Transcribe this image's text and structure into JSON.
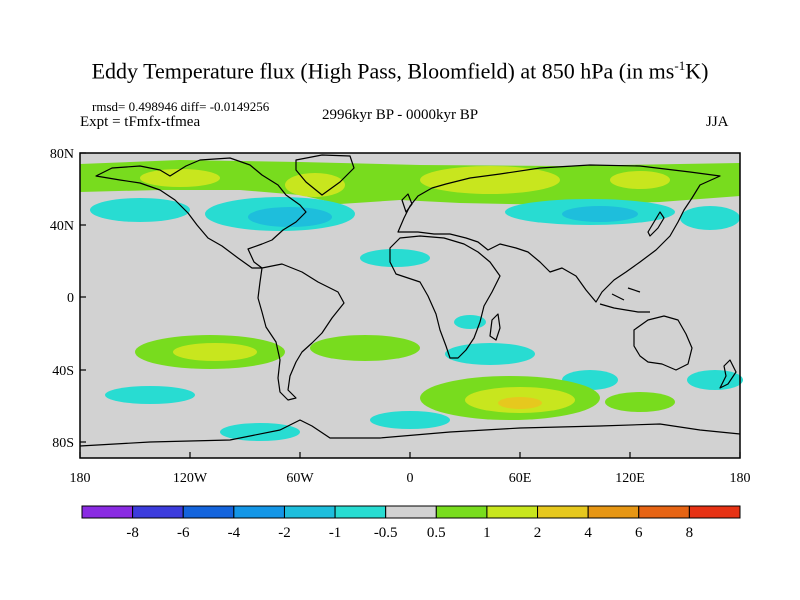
{
  "title": {
    "main": "Eddy Temperature flux (High Pass, Bloomfield) at 850 hPa (in ms",
    "superscript": "-1",
    "tail": "K)"
  },
  "stats": "rmsd= 0.498946 diff= -0.0149256",
  "experiment": "Expt = tFmfx-tfmea",
  "period": "2996kyr BP - 0000kyr BP",
  "season": "JJA",
  "axes": {
    "lat_labels": [
      "80N",
      "40N",
      "0",
      "40S",
      "80S"
    ],
    "lon_labels": [
      "180",
      "120W",
      "60W",
      "0",
      "60E",
      "120E",
      "180"
    ]
  },
  "colorbar": {
    "colors": [
      "#8a2be2",
      "#3c3cdc",
      "#1464dc",
      "#1496e6",
      "#1ebedc",
      "#28dcd2",
      "#d2d2d2",
      "#78dc1e",
      "#c8e61e",
      "#e6c81e",
      "#e69614",
      "#e66414",
      "#e63214"
    ],
    "labels": [
      "-8",
      "-6",
      "-4",
      "-2",
      "-1",
      "-0.5",
      "0.5",
      "1",
      "2",
      "4",
      "6",
      "8"
    ]
  }
}
